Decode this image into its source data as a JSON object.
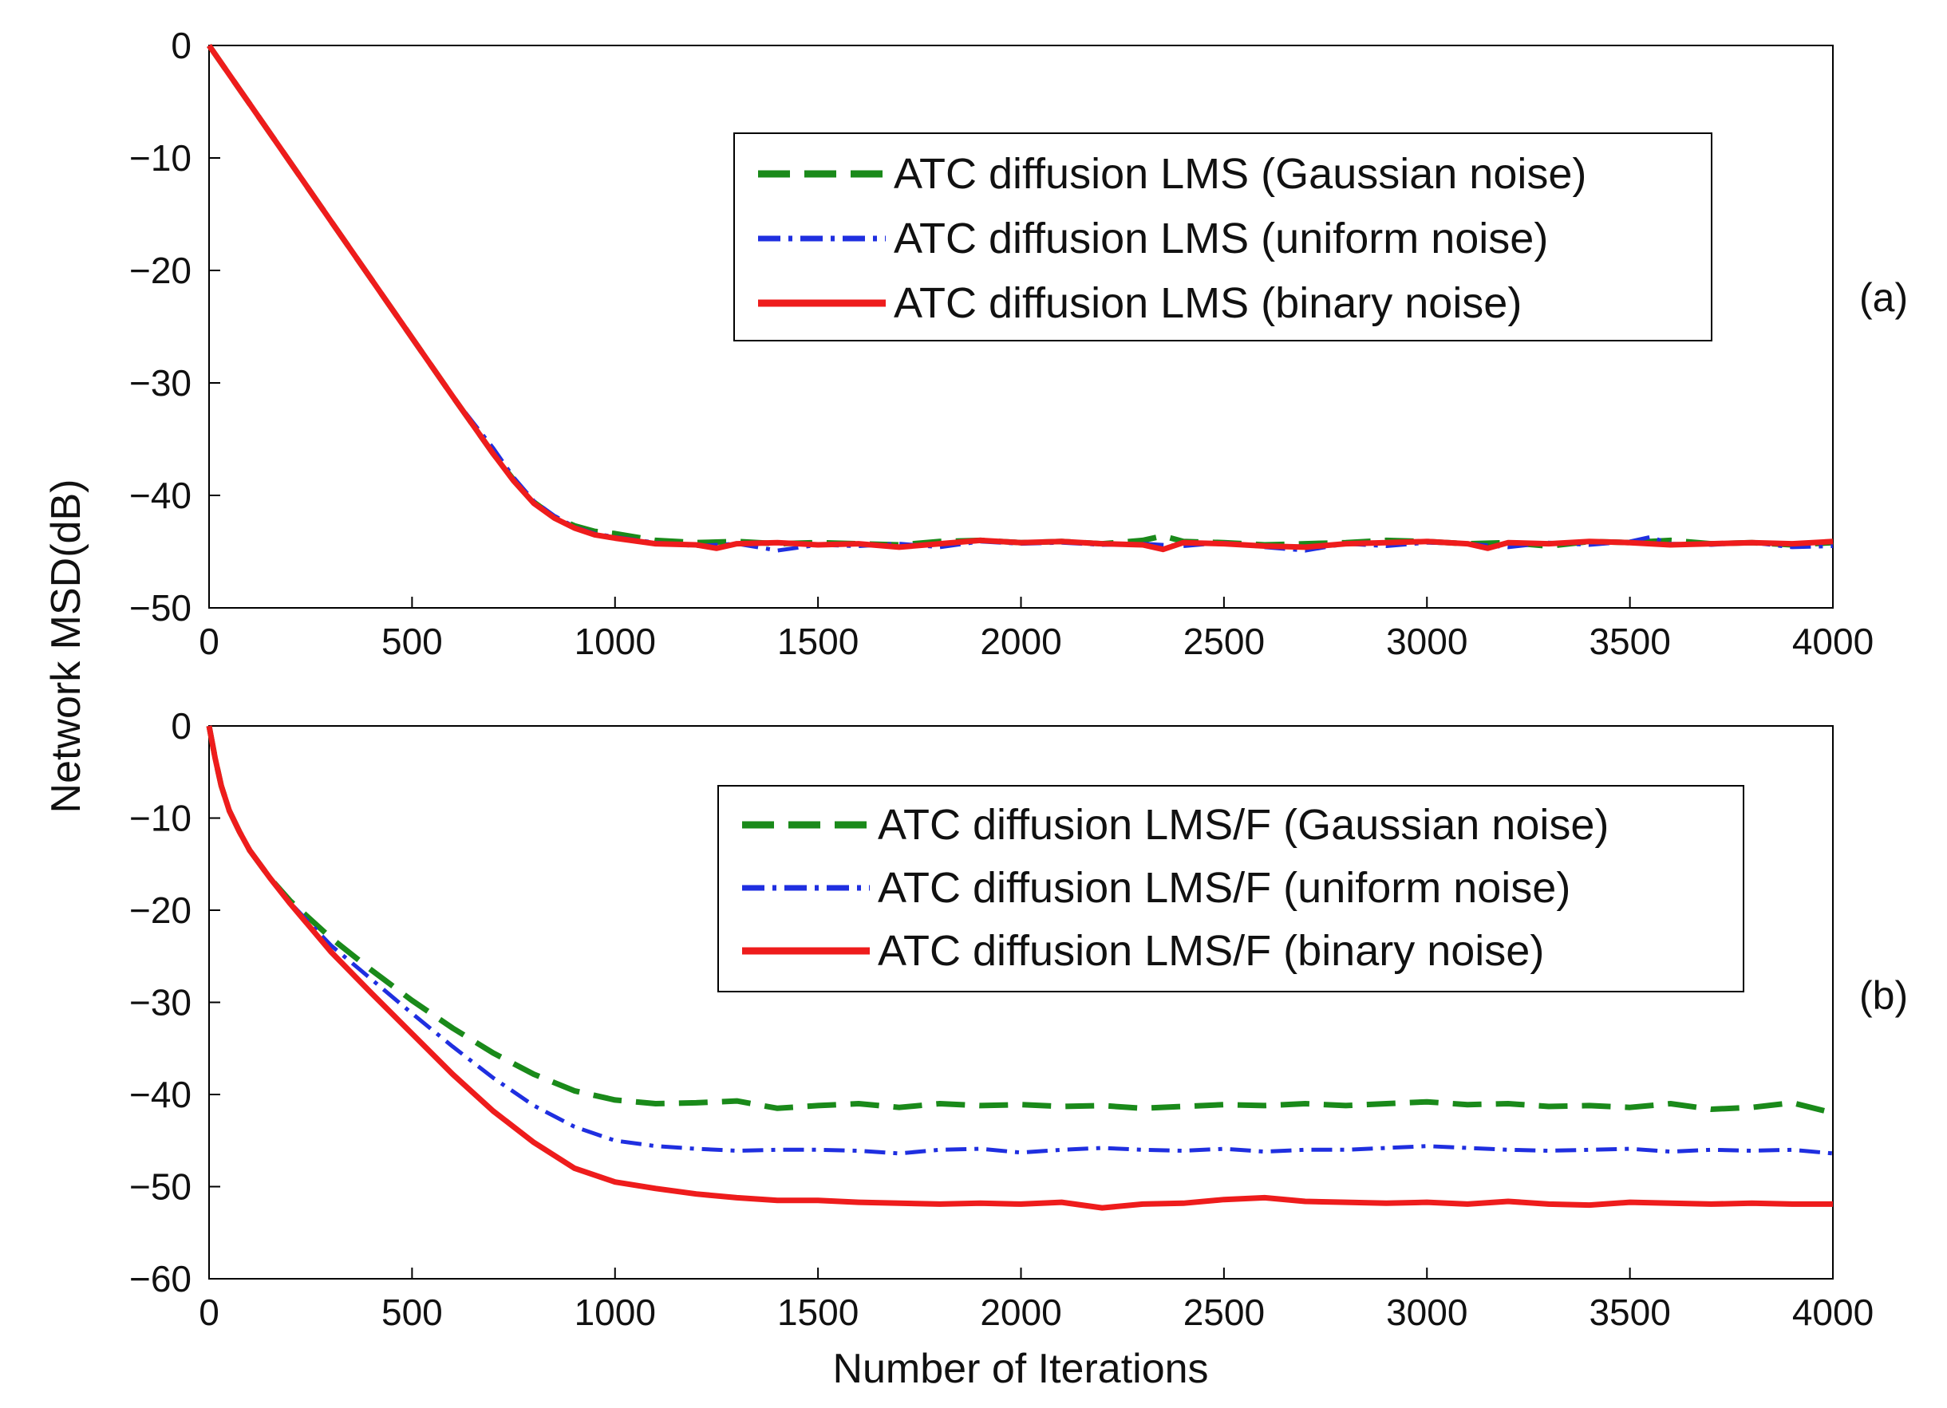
{
  "figure": {
    "ylabel": "Network MSD(dB)",
    "xlabel": "Number of Iterations"
  },
  "chart_data": [
    {
      "type": "line",
      "panel_label": "(a)",
      "xlim": [
        0,
        4000
      ],
      "ylim": [
        -50,
        0
      ],
      "xticks": [
        0,
        500,
        1000,
        1500,
        2000,
        2500,
        3000,
        3500,
        4000
      ],
      "yticks": [
        0,
        -10,
        -20,
        -30,
        -40,
        -50
      ],
      "legend_position": "top-right",
      "series": [
        {
          "name": "ATC diffusion LMS (Gaussian noise)",
          "color": "#1a8a1a",
          "style": "dashed",
          "x": [
            0,
            100,
            200,
            300,
            400,
            500,
            600,
            700,
            750,
            800,
            850,
            900,
            950,
            1000,
            1100,
            1200,
            1300,
            1400,
            1500,
            1600,
            1700,
            1800,
            1900,
            2000,
            2100,
            2200,
            2300,
            2350,
            2400,
            2500,
            2600,
            2700,
            2800,
            2900,
            3000,
            3100,
            3200,
            3300,
            3400,
            3500,
            3600,
            3700,
            3800,
            3900,
            4000
          ],
          "y": [
            0,
            -5.2,
            -10.4,
            -15.6,
            -20.8,
            -26,
            -31.2,
            -36.3,
            -38.6,
            -40.6,
            -41.9,
            -42.7,
            -43.2,
            -43.4,
            -44,
            -44.2,
            -44.1,
            -44.3,
            -44.2,
            -44.3,
            -44.4,
            -44.1,
            -44,
            -44.2,
            -44.1,
            -44.3,
            -44,
            -43.6,
            -44.1,
            -44.2,
            -44.4,
            -44.3,
            -44.2,
            -44,
            -44.1,
            -44.3,
            -44.2,
            -44.5,
            -44.1,
            -44.2,
            -44,
            -44.3,
            -44.2,
            -44.4,
            -44.2
          ]
        },
        {
          "name": "ATC diffusion LMS (uniform noise)",
          "color": "#1f2fe0",
          "style": "dashdot",
          "x": [
            0,
            100,
            200,
            300,
            400,
            500,
            600,
            700,
            750,
            800,
            850,
            900,
            950,
            1000,
            1100,
            1200,
            1300,
            1400,
            1500,
            1600,
            1700,
            1800,
            1900,
            2000,
            2100,
            2200,
            2300,
            2400,
            2500,
            2600,
            2700,
            2800,
            2900,
            3000,
            3100,
            3200,
            3300,
            3400,
            3500,
            3550,
            3600,
            3700,
            3800,
            3900,
            4000
          ],
          "y": [
            0,
            -5.2,
            -10.4,
            -15.6,
            -20.8,
            -26,
            -31.2,
            -35.8,
            -38.4,
            -40.5,
            -41.8,
            -42.8,
            -43.4,
            -43.7,
            -44.2,
            -44.5,
            -44.3,
            -44.9,
            -44.4,
            -44.5,
            -44.3,
            -44.6,
            -44.1,
            -44.3,
            -44.2,
            -44.4,
            -44.3,
            -44.5,
            -44.2,
            -44.6,
            -44.9,
            -44.3,
            -44.5,
            -44.2,
            -44.3,
            -44.6,
            -44.2,
            -44.4,
            -44.1,
            -43.7,
            -44.3,
            -44.4,
            -44.2,
            -44.6,
            -44.5
          ]
        },
        {
          "name": "ATC diffusion LMS (binary noise)",
          "color": "#ee1c1c",
          "style": "solid",
          "x": [
            0,
            100,
            200,
            300,
            400,
            500,
            600,
            700,
            750,
            800,
            850,
            900,
            950,
            1000,
            1100,
            1200,
            1250,
            1300,
            1400,
            1500,
            1600,
            1700,
            1800,
            1900,
            2000,
            2100,
            2200,
            2300,
            2350,
            2400,
            2500,
            2600,
            2700,
            2800,
            2900,
            3000,
            3100,
            3150,
            3200,
            3300,
            3400,
            3500,
            3600,
            3700,
            3800,
            3900,
            4000
          ],
          "y": [
            0,
            -5.2,
            -10.4,
            -15.6,
            -20.8,
            -26,
            -31.2,
            -36.3,
            -38.7,
            -40.7,
            -42,
            -42.9,
            -43.5,
            -43.8,
            -44.3,
            -44.4,
            -44.7,
            -44.3,
            -44.2,
            -44.4,
            -44.3,
            -44.6,
            -44.3,
            -44,
            -44.2,
            -44.1,
            -44.3,
            -44.4,
            -44.8,
            -44.2,
            -44.3,
            -44.5,
            -44.6,
            -44.3,
            -44.2,
            -44.1,
            -44.3,
            -44.7,
            -44.2,
            -44.3,
            -44.1,
            -44.2,
            -44.4,
            -44.3,
            -44.2,
            -44.3,
            -44.1
          ]
        }
      ]
    },
    {
      "type": "line",
      "panel_label": "(b)",
      "xlim": [
        0,
        4000
      ],
      "ylim": [
        -60,
        0
      ],
      "xticks": [
        0,
        500,
        1000,
        1500,
        2000,
        2500,
        3000,
        3500,
        4000
      ],
      "yticks": [
        0,
        -10,
        -20,
        -30,
        -40,
        -50,
        -60
      ],
      "legend_position": "top-right",
      "series": [
        {
          "name": "ATC diffusion LMS/F (Gaussian noise)",
          "color": "#1a8a1a",
          "style": "dashed",
          "x": [
            0,
            15,
            30,
            50,
            75,
            100,
            150,
            200,
            300,
            400,
            500,
            600,
            700,
            800,
            900,
            1000,
            1100,
            1200,
            1300,
            1400,
            1500,
            1600,
            1700,
            1800,
            1900,
            2000,
            2100,
            2200,
            2300,
            2400,
            2500,
            2600,
            2700,
            2800,
            2900,
            3000,
            3100,
            3200,
            3300,
            3400,
            3500,
            3600,
            3700,
            3800,
            3900,
            4000
          ],
          "y": [
            0,
            -3.5,
            -6.5,
            -9.2,
            -11.5,
            -13.5,
            -16.5,
            -19,
            -23,
            -26.5,
            -29.8,
            -32.8,
            -35.5,
            -37.8,
            -39.6,
            -40.6,
            -41,
            -40.9,
            -40.7,
            -41.5,
            -41.2,
            -41,
            -41.4,
            -41,
            -41.2,
            -41.1,
            -41.3,
            -41.2,
            -41.5,
            -41.3,
            -41.1,
            -41.2,
            -41,
            -41.2,
            -41,
            -40.8,
            -41.1,
            -41,
            -41.3,
            -41.2,
            -41.4,
            -41,
            -41.6,
            -41.4,
            -40.9,
            -42
          ]
        },
        {
          "name": "ATC diffusion LMS/F (uniform noise)",
          "color": "#1f2fe0",
          "style": "dashdot",
          "x": [
            0,
            15,
            30,
            50,
            75,
            100,
            150,
            200,
            300,
            400,
            500,
            600,
            700,
            800,
            900,
            1000,
            1100,
            1200,
            1300,
            1400,
            1500,
            1600,
            1700,
            1800,
            1900,
            2000,
            2100,
            2200,
            2300,
            2400,
            2500,
            2600,
            2700,
            2800,
            2900,
            3000,
            3100,
            3200,
            3300,
            3400,
            3500,
            3600,
            3700,
            3800,
            3900,
            4000
          ],
          "y": [
            0,
            -3.5,
            -6.5,
            -9.2,
            -11.5,
            -13.5,
            -16.5,
            -19.2,
            -23.8,
            -27.5,
            -31.2,
            -34.8,
            -38.2,
            -41.2,
            -43.5,
            -45,
            -45.6,
            -45.9,
            -46.1,
            -46,
            -46,
            -46.1,
            -46.4,
            -46,
            -45.9,
            -46.3,
            -46,
            -45.8,
            -46,
            -46.1,
            -45.9,
            -46.2,
            -46,
            -46,
            -45.8,
            -45.6,
            -45.8,
            -46,
            -46.1,
            -46,
            -45.9,
            -46.2,
            -46,
            -46.1,
            -46,
            -46.4
          ]
        },
        {
          "name": "ATC diffusion LMS/F (binary noise)",
          "color": "#ee1c1c",
          "style": "solid",
          "x": [
            0,
            15,
            30,
            50,
            75,
            100,
            150,
            200,
            300,
            400,
            500,
            600,
            700,
            800,
            900,
            1000,
            1100,
            1200,
            1300,
            1400,
            1500,
            1600,
            1700,
            1800,
            1900,
            2000,
            2100,
            2200,
            2300,
            2400,
            2500,
            2600,
            2700,
            2800,
            2900,
            3000,
            3100,
            3200,
            3300,
            3400,
            3500,
            3600,
            3700,
            3800,
            3900,
            4000
          ],
          "y": [
            0,
            -3.5,
            -6.5,
            -9.2,
            -11.5,
            -13.5,
            -16.5,
            -19.3,
            -24.5,
            -29,
            -33.4,
            -37.8,
            -41.8,
            -45.2,
            -48,
            -49.5,
            -50.2,
            -50.8,
            -51.2,
            -51.5,
            -51.5,
            -51.7,
            -51.8,
            -51.9,
            -51.8,
            -51.9,
            -51.7,
            -52.3,
            -51.9,
            -51.8,
            -51.4,
            -51.2,
            -51.6,
            -51.7,
            -51.8,
            -51.7,
            -51.9,
            -51.6,
            -51.9,
            -52,
            -51.7,
            -51.8,
            -51.9,
            -51.8,
            -51.9,
            -51.9
          ]
        }
      ]
    }
  ]
}
